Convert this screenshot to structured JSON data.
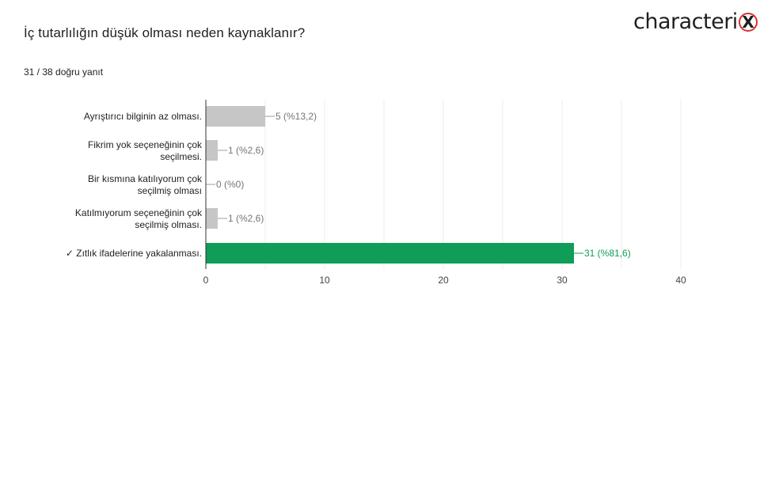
{
  "title": "İç tutarlılığın düşük olması neden kaynaklanır?",
  "response_count": "31 / 38 doğru yanıt",
  "logo": {
    "text": "characteri",
    "mark": "X"
  },
  "colors": {
    "bar": "#c6c6c6",
    "correct_bar": "#0f9d58",
    "grid": "#ececec",
    "axis": "#333333"
  },
  "chart_data": {
    "type": "bar",
    "orientation": "horizontal",
    "categories": [
      [
        "Ayrıştırıcı bilginin az olması."
      ],
      [
        "Fikrim yok seçeneğinin çok",
        "seçilmesi."
      ],
      [
        "Bir kısmına katılıyorum çok",
        "seçilmiş olması"
      ],
      [
        "Katılmıyorum seçeneğinin çok",
        "seçilmiş olması."
      ],
      [
        "✓ Zıtlık ifadelerine yakalanması."
      ]
    ],
    "values": [
      5,
      1,
      0,
      1,
      31
    ],
    "value_labels": [
      "5 (%13,2)",
      "1 (%2,6)",
      "0 (%0)",
      "1 (%2,6)",
      "31 (%81,6)"
    ],
    "correct": [
      false,
      false,
      false,
      false,
      true
    ],
    "xlim": [
      0,
      40
    ],
    "xticks": [
      0,
      10,
      20,
      30,
      40
    ],
    "grid": true
  }
}
